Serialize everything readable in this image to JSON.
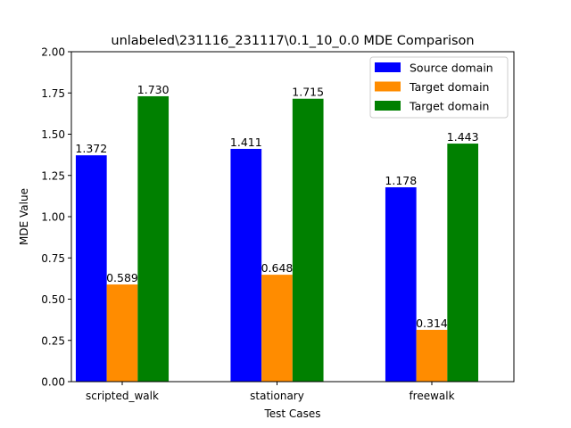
{
  "chart_data": {
    "type": "bar",
    "title": "unlabeled\\231116_231117\\0.1_10_0.0 MDE Comparison",
    "xlabel": "Test Cases",
    "ylabel": "MDE Value",
    "categories": [
      "scripted_walk",
      "stationary",
      "freewalk"
    ],
    "series": [
      {
        "name": "Source domain",
        "color": "#0000ff",
        "values": [
          1.372,
          1.411,
          1.178
        ],
        "labels": [
          "1.372",
          "1.411",
          "1.178"
        ]
      },
      {
        "name": "Target domain",
        "color": "#ff8c00",
        "values": [
          0.589,
          0.648,
          0.314
        ],
        "labels": [
          "0.589",
          "0.648",
          "0.314"
        ]
      },
      {
        "name": "Target domain",
        "color": "#008000",
        "values": [
          1.73,
          1.715,
          1.443
        ],
        "labels": [
          "1.730",
          "1.715",
          "1.443"
        ]
      }
    ],
    "ylim": [
      0,
      2.0
    ],
    "yticks": [
      "0.00",
      "0.25",
      "0.50",
      "0.75",
      "1.00",
      "1.25",
      "1.50",
      "1.75",
      "2.00"
    ],
    "grid": false,
    "legend_position": "top-right"
  }
}
